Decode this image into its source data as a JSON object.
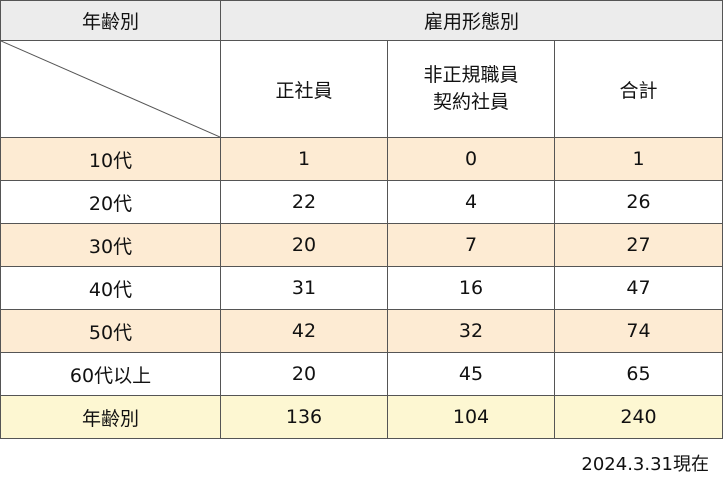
{
  "header": {
    "age_label": "年齢別",
    "employment_label": "雇用形態別",
    "cols": [
      "正社員",
      "非正規職員\n契約社員",
      "合計"
    ]
  },
  "rows": [
    {
      "age": "10代",
      "regular": "1",
      "non_regular": "0",
      "total": "1"
    },
    {
      "age": "20代",
      "regular": "22",
      "non_regular": "4",
      "total": "26"
    },
    {
      "age": "30代",
      "regular": "20",
      "non_regular": "7",
      "total": "27"
    },
    {
      "age": "40代",
      "regular": "31",
      "non_regular": "16",
      "total": "47"
    },
    {
      "age": "50代",
      "regular": "42",
      "non_regular": "32",
      "total": "74"
    },
    {
      "age": "60代以上",
      "regular": "20",
      "non_regular": "45",
      "total": "65"
    }
  ],
  "total_row": {
    "age": "年齢別",
    "regular": "136",
    "non_regular": "104",
    "total": "240"
  },
  "note": "2024.3.31現在",
  "colors": {
    "header_bg": "#ececec",
    "shade_bg": "#fdebd3",
    "total_bg": "#fdf7d2",
    "border": "#555555"
  }
}
